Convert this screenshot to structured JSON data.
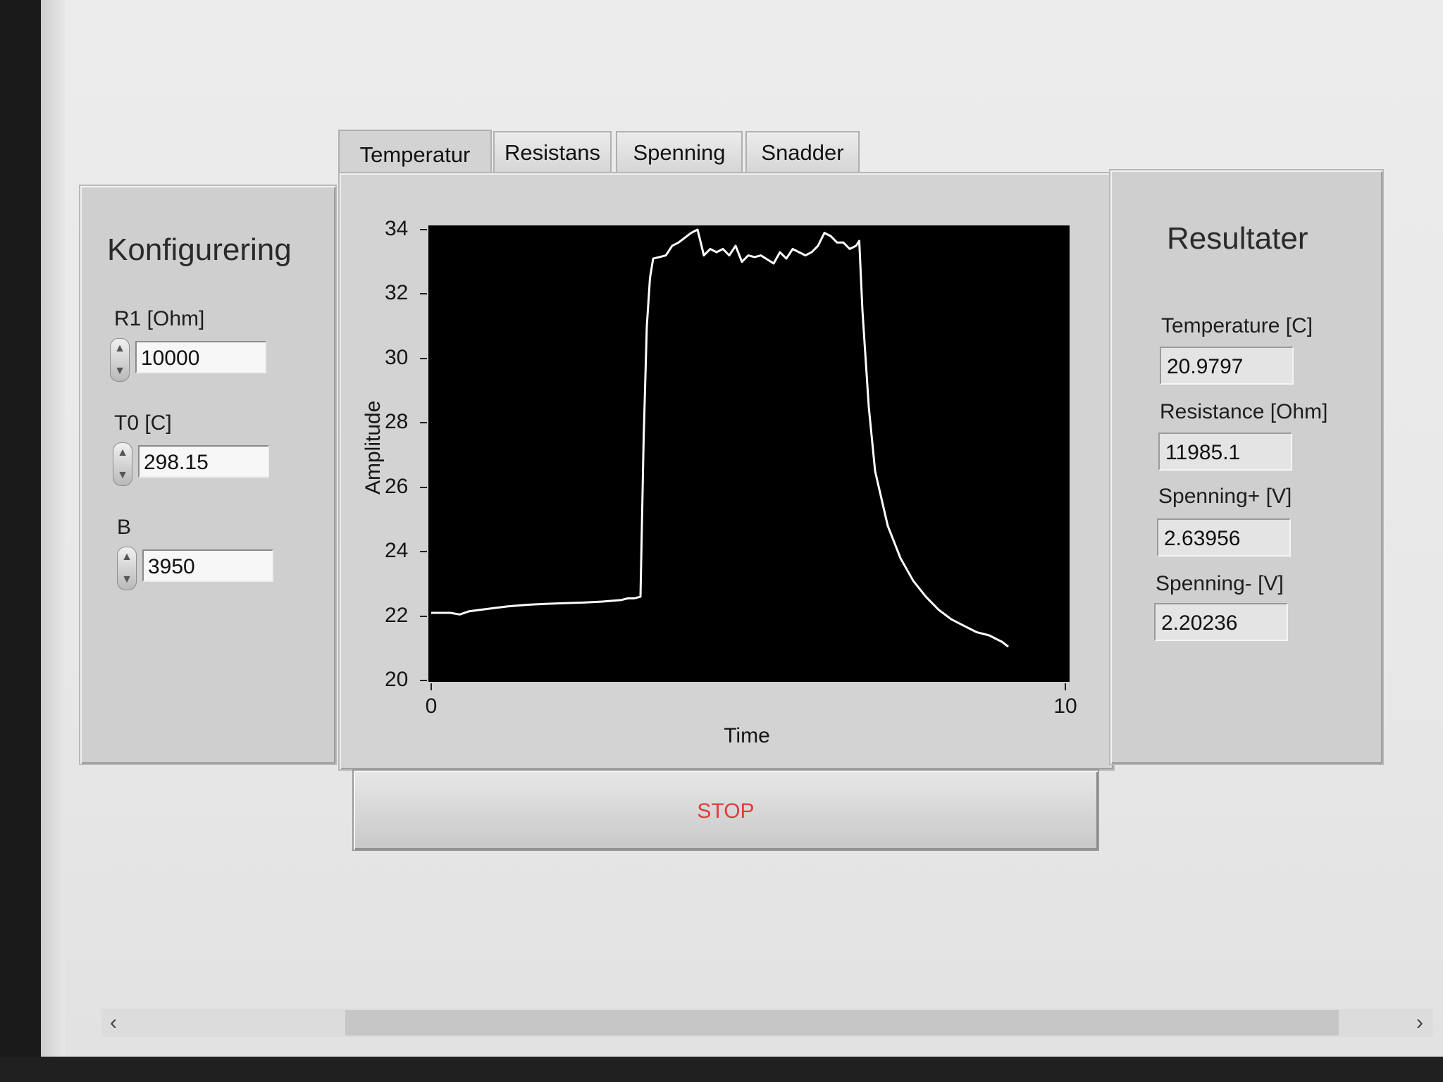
{
  "tabs": [
    "Temperatur",
    "Resistans",
    "Spenning",
    "Snadder"
  ],
  "config": {
    "title": "Konfigurering",
    "fields": [
      {
        "label": "R1 [Ohm]",
        "value": "10000"
      },
      {
        "label": "T0 [C]",
        "value": "298.15"
      },
      {
        "label": "B",
        "value": "3950"
      }
    ]
  },
  "results": {
    "title": "Resultater",
    "fields": [
      {
        "label": "Temperature [C]",
        "value": "20.9797"
      },
      {
        "label": "Resistance [Ohm]",
        "value": "11985.1"
      },
      {
        "label": "Spenning+ [V]",
        "value": "2.63956"
      },
      {
        "label": "Spenning- [V]",
        "value": "2.20236"
      }
    ]
  },
  "stop_label": "STOP",
  "chart_data": {
    "type": "line",
    "title": "",
    "xlabel": "Time",
    "ylabel": "Amplitude",
    "xlim": [
      0,
      10
    ],
    "ylim": [
      20,
      34
    ],
    "x_ticks": [
      "0",
      "10"
    ],
    "y_ticks": [
      "20",
      "22",
      "24",
      "26",
      "28",
      "30",
      "32",
      "34"
    ],
    "background": "#000000",
    "line_color": "#ffffff",
    "series": [
      {
        "x": [
          0,
          0.3,
          0.45,
          0.6,
          0.8,
          1.0,
          1.2,
          1.5,
          1.8,
          2.1,
          2.4,
          2.7,
          3.0,
          3.1,
          3.2,
          3.3,
          3.35,
          3.4,
          3.45,
          3.5,
          3.6,
          3.7,
          3.8,
          3.9,
          4.1,
          4.2,
          4.3,
          4.4,
          4.5,
          4.6,
          4.7,
          4.8,
          4.9,
          5.0,
          5.1,
          5.2,
          5.4,
          5.5,
          5.6,
          5.7,
          5.8,
          5.9,
          6.0,
          6.1,
          6.2,
          6.3,
          6.4,
          6.5,
          6.6,
          6.7,
          6.75,
          6.8,
          6.9,
          7.0,
          7.2,
          7.4,
          7.6,
          7.8,
          8.0,
          8.2,
          8.4,
          8.6,
          8.8,
          9.0,
          9.1
        ],
        "y": [
          22.1,
          22.1,
          22.05,
          22.15,
          22.2,
          22.25,
          22.3,
          22.35,
          22.38,
          22.4,
          22.42,
          22.45,
          22.5,
          22.55,
          22.55,
          22.6,
          27.5,
          31.0,
          32.5,
          33.1,
          33.15,
          33.2,
          33.5,
          33.6,
          33.9,
          34.0,
          33.2,
          33.4,
          33.3,
          33.4,
          33.2,
          33.5,
          33.0,
          33.2,
          33.15,
          33.2,
          32.95,
          33.3,
          33.1,
          33.4,
          33.3,
          33.2,
          33.3,
          33.5,
          33.9,
          33.8,
          33.6,
          33.6,
          33.4,
          33.5,
          33.65,
          31.5,
          28.5,
          26.5,
          24.8,
          23.8,
          23.1,
          22.6,
          22.2,
          21.9,
          21.7,
          21.5,
          21.4,
          21.2,
          21.05
        ]
      }
    ]
  }
}
